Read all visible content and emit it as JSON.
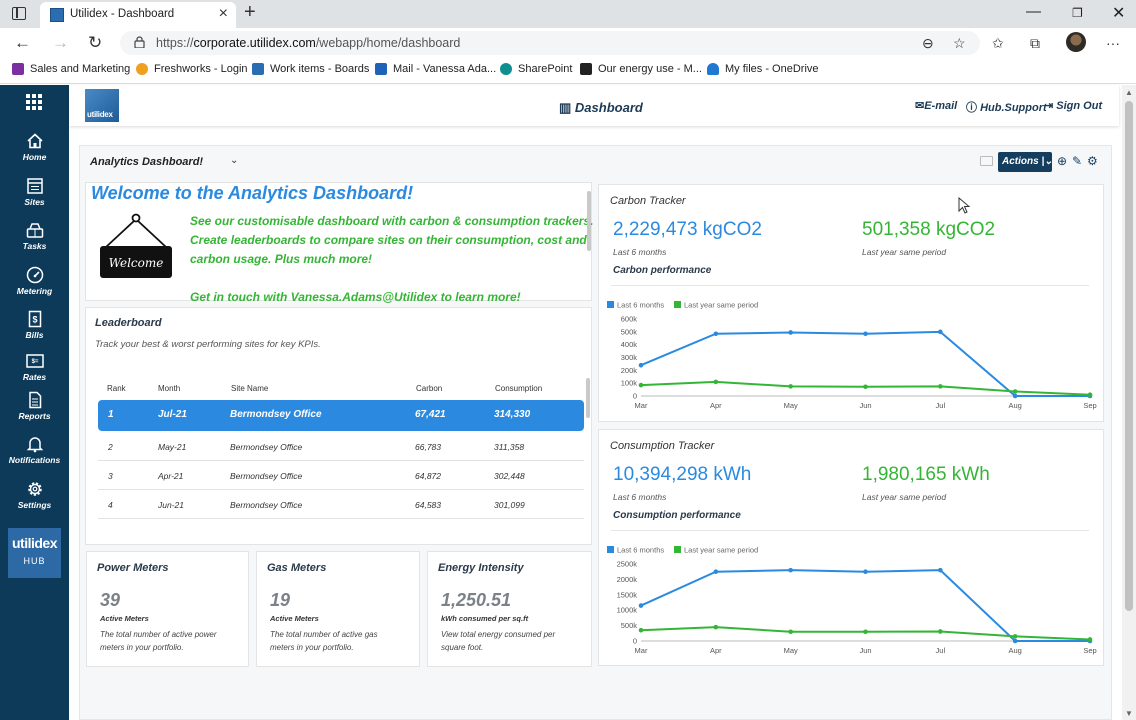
{
  "browser": {
    "tab_title": "Utilidex - Dashboard",
    "url_prefix": "https://",
    "url_host": "corporate.utilidex.com",
    "url_path": "/webapp/home/dashboard",
    "favorites": [
      {
        "label": "Sales and Marketing",
        "color": "#7b2fa0"
      },
      {
        "label": "Freshworks - Login",
        "color": "#f0a020"
      },
      {
        "label": "Work items - Boards",
        "color": "#2a6db0"
      },
      {
        "label": "Mail - Vanessa Ada...",
        "color": "#1e63b8"
      },
      {
        "label": "SharePoint",
        "color": "#0f8f8f"
      },
      {
        "label": "Our energy use - M...",
        "color": "#222222"
      },
      {
        "label": "My files - OneDrive",
        "color": "#1f78d1"
      }
    ]
  },
  "sidebar": {
    "items": [
      {
        "label": "Home",
        "icon": "home-icon"
      },
      {
        "label": "Sites",
        "icon": "sites-icon"
      },
      {
        "label": "Tasks",
        "icon": "tasks-icon"
      },
      {
        "label": "Metering",
        "icon": "metering-icon"
      },
      {
        "label": "Bills",
        "icon": "bills-icon"
      },
      {
        "label": "Rates",
        "icon": "rates-icon"
      },
      {
        "label": "Reports",
        "icon": "reports-icon"
      },
      {
        "label": "Notifications",
        "icon": "bell-icon"
      },
      {
        "label": "Settings",
        "icon": "gear-icon"
      }
    ],
    "hub_line1": "utilidex",
    "hub_line2": "HUB"
  },
  "header": {
    "logo_text": "utilidex",
    "title": "Dashboard",
    "email": "E-mail",
    "support": "Hub.Support",
    "signout": "Sign Out"
  },
  "toolbar": {
    "dashboard_name": "Analytics Dashboard!",
    "actions_label": "Actions"
  },
  "welcome": {
    "title": "Welcome to the Analytics Dashboard!",
    "sign_text": "Welcome",
    "line1": "See our customisable dashboard with carbon & consumption trackers.",
    "line2": "Create leaderboards to compare sites on their consumption, cost and",
    "line3": "carbon usage. Plus much more!",
    "line4": "Get in touch with Vanessa.Adams@Utilidex to learn more!"
  },
  "leaderboard": {
    "title": "Leaderboard",
    "subtitle": "Track your best & worst performing sites for key KPIs.",
    "headers": {
      "rank": "Rank",
      "month": "Month",
      "site": "Site Name",
      "carbon": "Carbon",
      "consumption": "Consumption"
    },
    "rows": [
      {
        "rank": "1",
        "month": "Jul-21",
        "site": "Bermondsey Office",
        "carbon": "67,421",
        "consumption": "314,330"
      },
      {
        "rank": "2",
        "month": "May-21",
        "site": "Bermondsey Office",
        "carbon": "66,783",
        "consumption": "311,358"
      },
      {
        "rank": "3",
        "month": "Apr-21",
        "site": "Bermondsey Office",
        "carbon": "64,872",
        "consumption": "302,448"
      },
      {
        "rank": "4",
        "month": "Jun-21",
        "site": "Bermondsey Office",
        "carbon": "64,583",
        "consumption": "301,099"
      }
    ]
  },
  "kpis": [
    {
      "title": "Power Meters",
      "value": "39",
      "label": "Active Meters",
      "desc1": "The total number of active power",
      "desc2": "meters in your portfolio."
    },
    {
      "title": "Gas Meters",
      "value": "19",
      "label": "Active Meters",
      "desc1": "The total number of active gas",
      "desc2": "meters in your portfolio."
    },
    {
      "title": "Energy Intensity",
      "value": "1,250.51",
      "label": "kWh consumed per sq.ft",
      "desc1": "View total energy consumed per",
      "desc2": "square foot."
    }
  ],
  "carbon": {
    "title": "Carbon Tracker",
    "value": "2,229,473 kgCO2",
    "value_label": "Last 6 months",
    "prev_value": "501,358 kgCO2",
    "prev_label": "Last year same period",
    "perf_label": "Carbon performance"
  },
  "consumption": {
    "title": "Consumption Tracker",
    "value": "10,394,298 kWh",
    "value_label": "Last 6 months",
    "prev_value": "1,980,165 kWh",
    "prev_label": "Last year same period",
    "perf_label": "Consumption performance"
  },
  "colors": {
    "blue": "#2b8ae0",
    "green": "#35b535",
    "navy": "#0e3a5a"
  },
  "chart_data": [
    {
      "type": "line",
      "categories": [
        "Mar",
        "Apr",
        "May",
        "Jun",
        "Jul",
        "Aug",
        "Sep"
      ],
      "series": [
        {
          "name": "Last 6 months",
          "color": "#2b8ae0",
          "values": [
            240000,
            485000,
            495000,
            485000,
            500000,
            0,
            0
          ]
        },
        {
          "name": "Last year same period",
          "color": "#35b535",
          "values": [
            85000,
            110000,
            75000,
            72000,
            75000,
            35000,
            10000
          ]
        }
      ],
      "yticks": [
        "600k",
        "500k",
        "400k",
        "300k",
        "200k",
        "100k",
        "0"
      ],
      "ylim": [
        0,
        600000
      ],
      "legend": "top-left"
    },
    {
      "type": "line",
      "categories": [
        "Mar",
        "Apr",
        "May",
        "Jun",
        "Jul",
        "Aug",
        "Sep"
      ],
      "series": [
        {
          "name": "Last 6 months",
          "color": "#2b8ae0",
          "values": [
            1150000,
            2250000,
            2300000,
            2250000,
            2300000,
            0,
            0
          ]
        },
        {
          "name": "Last year same period",
          "color": "#35b535",
          "values": [
            350000,
            450000,
            300000,
            300000,
            310000,
            150000,
            50000
          ]
        }
      ],
      "yticks": [
        "2500k",
        "2000k",
        "1500k",
        "1000k",
        "500k",
        "0"
      ],
      "ylim": [
        0,
        2500000
      ],
      "legend": "top-left"
    }
  ]
}
